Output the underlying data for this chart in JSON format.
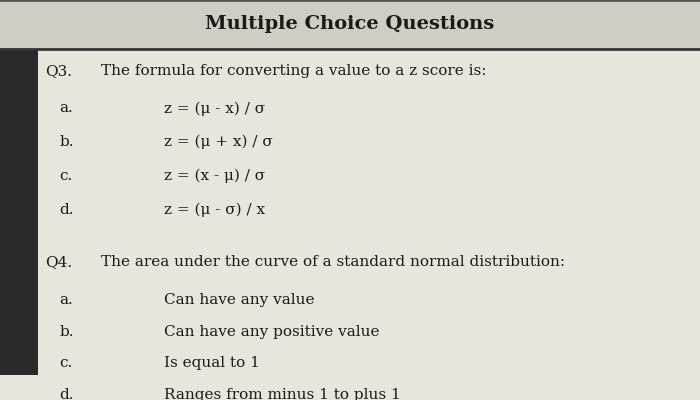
{
  "title": "Multiple Choice Questions",
  "content_bg": "#e8e5dc",
  "title_bg": "#d0cdc4",
  "left_bar_color": "#2a2a2a",
  "left_bar_width": 0.055,
  "q3_label": "Q3.",
  "q3_question": "The formula for converting a value to a z score is:",
  "q3_options": [
    [
      "a.",
      "z = (μ - x) / σ"
    ],
    [
      "b.",
      "z = (μ + x) / σ"
    ],
    [
      "c.",
      "z = (x - μ) / σ"
    ],
    [
      "d.",
      "z = (μ - σ) / x"
    ]
  ],
  "q4_label": "Q4.",
  "q4_question": "The area under the curve of a standard normal distribution:",
  "q4_options": [
    [
      "a.",
      "Can have any value"
    ],
    [
      "b.",
      "Can have any positive value"
    ],
    [
      "c.",
      "Is equal to 1"
    ],
    [
      "d.",
      "Ranges from minus 1 to plus 1"
    ]
  ],
  "title_fontsize": 14,
  "question_fontsize": 11,
  "option_fontsize": 11,
  "font_color": "#1a1a1a",
  "title_bar_height": 0.13
}
